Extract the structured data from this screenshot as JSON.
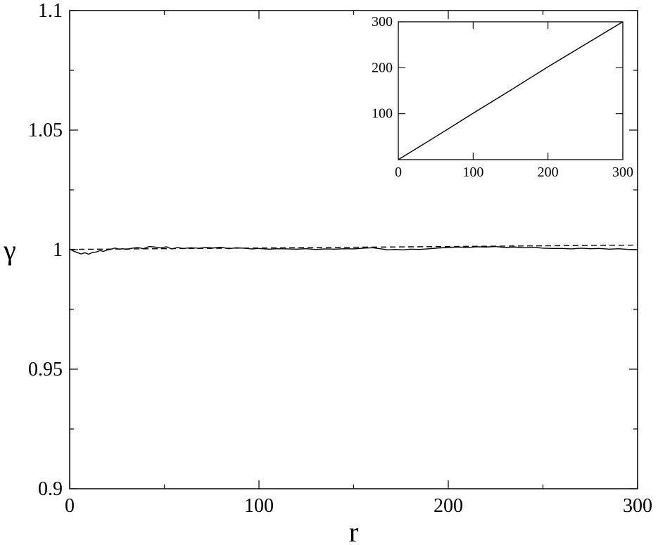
{
  "chart_data": [
    {
      "type": "line",
      "title": "",
      "xlabel": "r",
      "ylabel": "γ",
      "xlim": [
        0,
        300
      ],
      "ylim": [
        0.9,
        1.1
      ],
      "x_ticks": [
        0,
        100,
        200,
        300
      ],
      "x_tick_labels": [
        "0",
        "100",
        "200",
        "300"
      ],
      "x_minor_ticks": [
        50,
        150,
        250
      ],
      "y_ticks": [
        0.9,
        0.95,
        1.0,
        1.05,
        1.1
      ],
      "y_tick_labels": [
        "0.9",
        "0.95",
        "1",
        "1.05",
        "1.1"
      ],
      "y_minor_ticks": [
        0.925,
        0.975,
        1.025,
        1.075
      ],
      "grid": false,
      "series": [
        {
          "style": "solid",
          "x": [
            0,
            2,
            4,
            6,
            8,
            10,
            12,
            14,
            16,
            18,
            20,
            22,
            24,
            26,
            28,
            30,
            33,
            36,
            39,
            42,
            45,
            48,
            51,
            54,
            57,
            60,
            64,
            68,
            72,
            76,
            80,
            84,
            88,
            92,
            96,
            100,
            105,
            110,
            115,
            120,
            125,
            130,
            135,
            140,
            145,
            150,
            155,
            160,
            164,
            168,
            172,
            176,
            180,
            185,
            190,
            195,
            200,
            205,
            210,
            215,
            220,
            225,
            230,
            235,
            240,
            245,
            250,
            255,
            260,
            265,
            270,
            275,
            280,
            285,
            290,
            295,
            300
          ],
          "y": [
            1.0003,
            0.9994,
            0.9988,
            0.9982,
            0.9987,
            0.9981,
            0.9988,
            0.999,
            0.9996,
            0.9993,
            0.9999,
            1.0002,
            1.0007,
            1.0002,
            1.0004,
            1.0001,
            1.0006,
            1.0009,
            1.0004,
            1.0013,
            1.0011,
            1.0007,
            1.0012,
            1.0003,
            1.0009,
            1.0005,
            1.0008,
            1.0006,
            1.0009,
            1.0007,
            1.001,
            1.0004,
            1.0008,
            1.0006,
            1.0003,
            1.0005,
            1.0002,
            1.0004,
            1.0003,
            1.0002,
            1.0004,
            1.0001,
            1.0003,
            1.0002,
            1.0004,
            1.0003,
            1.0006,
            1.0008,
            1.0004,
            0.9999,
            1.0001,
            0.9999,
            1.0002,
            1.0001,
            1.0004,
            1.0007,
            1.0009,
            1.0011,
            1.0009,
            1.0012,
            1.0011,
            1.0013,
            1.0009,
            1.0011,
            1.0008,
            1.001,
            1.0006,
            1.0005,
            1.0005,
            1.0003,
            1.0006,
            1.0004,
            1.0005,
            1.0002,
            1.0004,
            1.0001,
            1.0
          ]
        },
        {
          "style": "dashed",
          "x": [
            0,
            300
          ],
          "y": [
            1.0001,
            1.0019
          ]
        }
      ]
    },
    {
      "type": "line",
      "title": "",
      "xlabel": "",
      "ylabel": "",
      "xlim": [
        0,
        300
      ],
      "ylim": [
        0,
        300
      ],
      "x_ticks": [
        0,
        100,
        200,
        300
      ],
      "x_tick_labels": [
        "0",
        "100",
        "200",
        "300"
      ],
      "y_ticks": [
        100,
        200,
        300
      ],
      "y_tick_labels": [
        "100",
        "200",
        "300"
      ],
      "grid": false,
      "series": [
        {
          "style": "solid",
          "x": [
            0,
            50,
            100,
            150,
            200,
            250,
            300
          ],
          "y": [
            0,
            50,
            101,
            151,
            202,
            251,
            300
          ]
        }
      ]
    }
  ]
}
